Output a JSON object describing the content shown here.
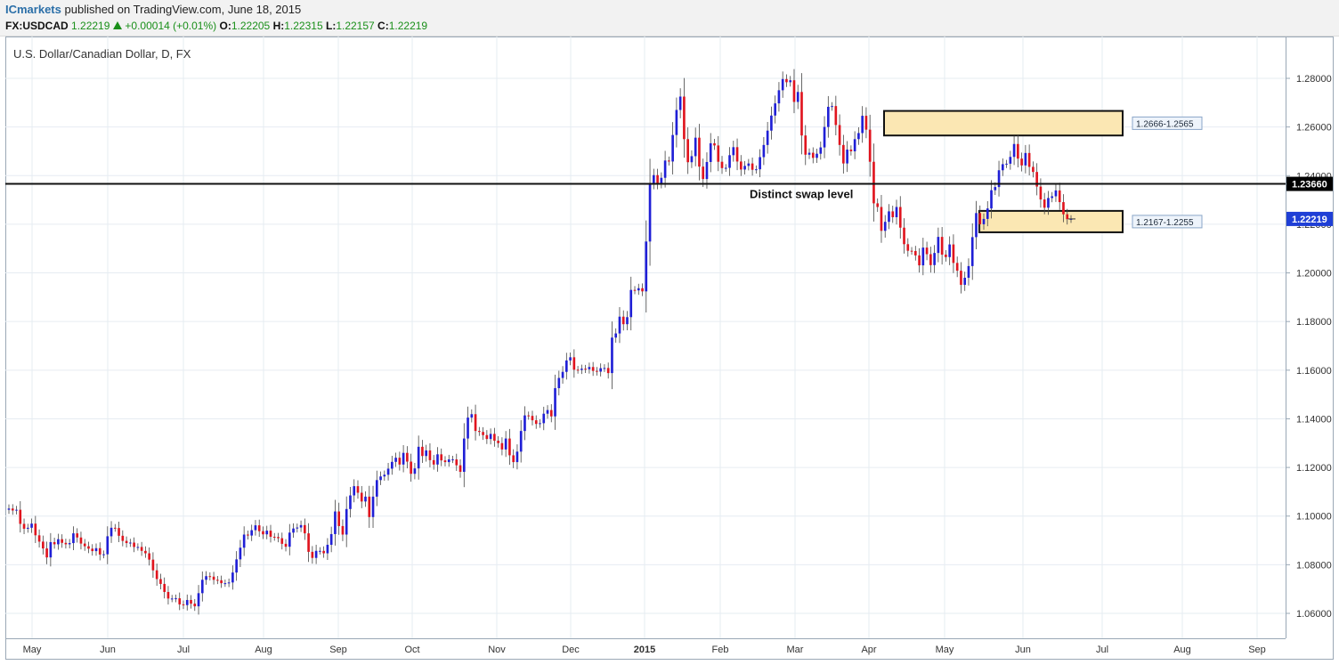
{
  "header": {
    "publisher": "ICmarkets",
    "published_text": "published on TradingView.com, June 18, 2015",
    "symbol": "FX:USDCAD",
    "last": "1.22219",
    "change": "+0.00014 (+0.01%)",
    "open_label": "O:",
    "open": "1.22205",
    "high_label": "H:",
    "high": "1.22315",
    "low_label": "L:",
    "low": "1.22157",
    "close_label": "C:",
    "close": "1.22219"
  },
  "chart_data": {
    "type": "candlestick",
    "title": "U.S. Dollar/Canadian Dollar, D, FX",
    "ylim": [
      1.05,
      1.29
    ],
    "yticks": [
      "1.28000",
      "1.26000",
      "1.24000",
      "1.22000",
      "1.20000",
      "1.18000",
      "1.16000",
      "1.14000",
      "1.12000",
      "1.10000",
      "1.08000",
      "1.06000"
    ],
    "xticks": [
      "May",
      "Jun",
      "Jul",
      "Aug",
      "Sep",
      "Oct",
      "Nov",
      "Dec",
      "2015",
      "Feb",
      "Mar",
      "Apr",
      "May",
      "Jun",
      "Jul",
      "Aug",
      "Sep"
    ],
    "colors": {
      "up": "#1f1fd6",
      "down": "#e0141e",
      "zone_fill": "#fbe7b3",
      "grid": "#e6ecf2"
    },
    "horizontal_level": {
      "value": 1.2366,
      "label": "1.23660",
      "annotation": "Distinct swap level"
    },
    "zones": [
      {
        "label": "1.2666-1.2565",
        "top": 1.2666,
        "bottom": 1.2565
      },
      {
        "label": "1.2167-1.2255",
        "top": 1.2255,
        "bottom": 1.2167
      }
    ],
    "last_price": {
      "value": 1.22219,
      "label": "1.22219"
    },
    "series": [
      {
        "name": "FX:USDCAD",
        "closes": [
          1.1031,
          1.1023,
          1.1026,
          1.0968,
          1.0948,
          1.0952,
          1.0969,
          1.0921,
          1.0895,
          1.0867,
          1.083,
          1.0893,
          1.0884,
          1.0905,
          1.089,
          1.0884,
          1.0889,
          1.0929,
          1.0912,
          1.0887,
          1.0876,
          1.0866,
          1.0856,
          1.0868,
          1.0842,
          1.0843,
          1.0917,
          1.0952,
          1.0951,
          1.0919,
          1.0898,
          1.0889,
          1.0891,
          1.0873,
          1.0873,
          1.0857,
          1.0847,
          1.0821,
          1.0777,
          1.0741,
          1.0721,
          1.0688,
          1.0661,
          1.0661,
          1.0662,
          1.0637,
          1.0634,
          1.0655,
          1.064,
          1.0629,
          1.0683,
          1.0738,
          1.0753,
          1.0751,
          1.0738,
          1.0736,
          1.0724,
          1.0724,
          1.0727,
          1.0768,
          1.0822,
          1.087,
          1.0924,
          1.092,
          1.0942,
          1.0962,
          1.0938,
          1.0925,
          1.094,
          1.0915,
          1.0914,
          1.0909,
          1.0886,
          1.0874,
          1.0932,
          1.0949,
          1.0953,
          1.0963,
          1.0929,
          1.0853,
          1.0828,
          1.0857,
          1.0857,
          1.0847,
          1.0882,
          1.0926,
          1.1019,
          1.0959,
          1.0924,
          1.1029,
          1.1085,
          1.1123,
          1.1096,
          1.106,
          1.108,
          1.0996,
          1.108,
          1.1148,
          1.1163,
          1.117,
          1.1195,
          1.1223,
          1.124,
          1.1212,
          1.126,
          1.1224,
          1.1174,
          1.1196,
          1.1285,
          1.1247,
          1.127,
          1.123,
          1.1212,
          1.1254,
          1.1229,
          1.1222,
          1.1233,
          1.1233,
          1.1209,
          1.1182,
          1.1319,
          1.1405,
          1.1419,
          1.135,
          1.1346,
          1.1333,
          1.1317,
          1.1338,
          1.131,
          1.13,
          1.1274,
          1.1319,
          1.125,
          1.1222,
          1.1265,
          1.135,
          1.1414,
          1.1412,
          1.1394,
          1.1379,
          1.1382,
          1.1421,
          1.1436,
          1.141,
          1.1526,
          1.1568,
          1.1593,
          1.164,
          1.1653,
          1.1602,
          1.1601,
          1.1606,
          1.1604,
          1.1613,
          1.1597,
          1.1594,
          1.1608,
          1.1609,
          1.1588,
          1.1734,
          1.1751,
          1.182,
          1.1789,
          1.1818,
          1.193,
          1.1928,
          1.1937,
          1.1924,
          1.2129,
          1.237,
          1.2402,
          1.237,
          1.2391,
          1.2462,
          1.2458,
          1.2567,
          1.267,
          1.2725,
          1.255,
          1.2455,
          1.248,
          1.2556,
          1.2437,
          1.2386,
          1.2456,
          1.2533,
          1.2524,
          1.2457,
          1.2431,
          1.2432,
          1.2484,
          1.2517,
          1.2458,
          1.2425,
          1.244,
          1.245,
          1.2424,
          1.2426,
          1.2476,
          1.2526,
          1.2585,
          1.2647,
          1.2697,
          1.2751,
          1.2797,
          1.2784,
          1.2792,
          1.2703,
          1.2744,
          1.2565,
          1.2486,
          1.2494,
          1.2473,
          1.249,
          1.2516,
          1.26,
          1.2683,
          1.2686,
          1.2608,
          1.2526,
          1.245,
          1.2507,
          1.25,
          1.255,
          1.2575,
          1.2646,
          1.2589,
          1.2457,
          1.2286,
          1.2271,
          1.2173,
          1.221,
          1.2253,
          1.2229,
          1.2271,
          1.2186,
          1.2118,
          1.2091,
          1.209,
          1.2072,
          1.2031,
          1.2104,
          1.2077,
          1.2032,
          1.2082,
          1.2148,
          1.2075,
          1.2065,
          1.2117,
          1.2041,
          1.2009,
          1.1951,
          1.198,
          1.2028,
          1.2147,
          1.2246,
          1.22,
          1.2222,
          1.2265,
          1.234,
          1.2353,
          1.2422,
          1.2447,
          1.2449,
          1.2477,
          1.253,
          1.247,
          1.2442,
          1.2493,
          1.2436,
          1.2415,
          1.2355,
          1.2302,
          1.2268,
          1.2308,
          1.2315,
          1.2339,
          1.2291,
          1.2241,
          1.2221,
          1.2222
        ]
      }
    ]
  }
}
